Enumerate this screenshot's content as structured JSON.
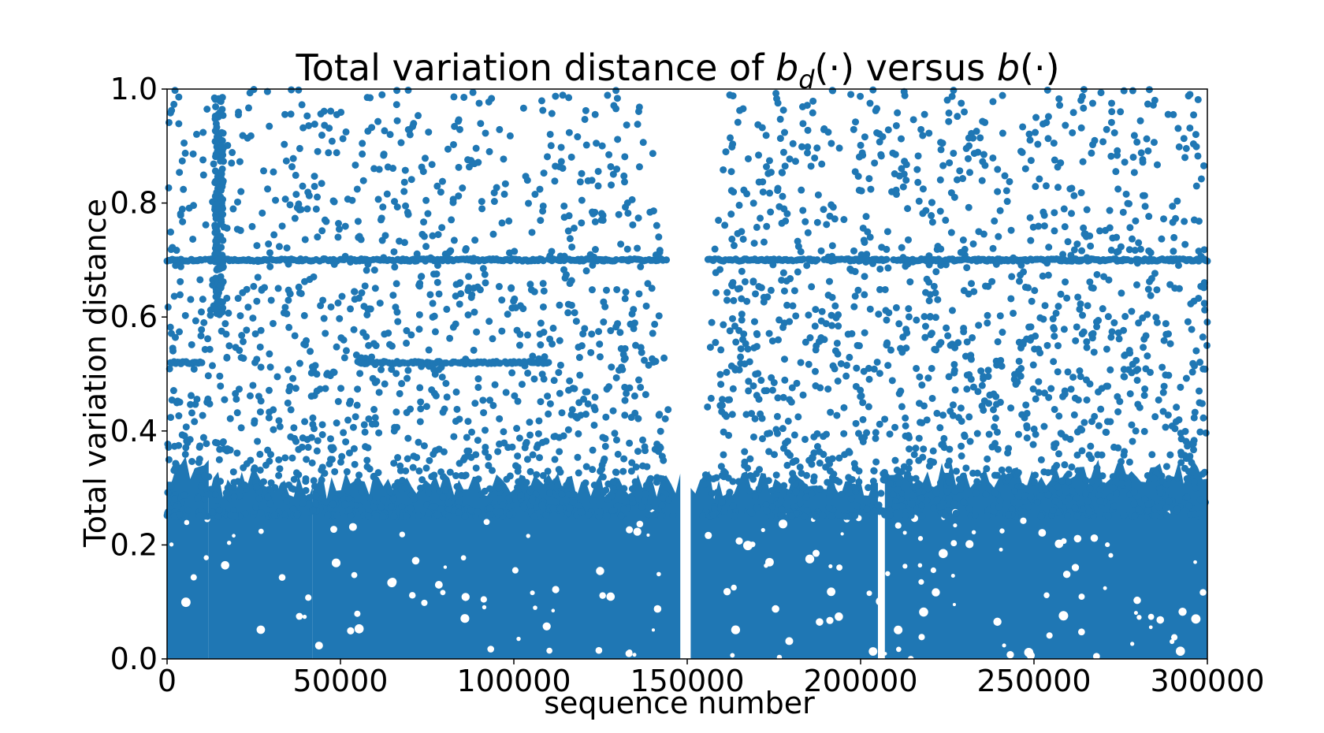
{
  "chart_data": {
    "type": "scatter",
    "title_parts": {
      "prefix": "Total variation distance of ",
      "bd_base": "b",
      "bd_sub": "d",
      "bd_args": "(·)",
      "middle": " versus ",
      "b_base": "b",
      "b_args": "(·)"
    },
    "xlabel": "sequence number",
    "ylabel": "Total variation distance",
    "xlim": [
      0,
      300000
    ],
    "ylim": [
      0.0,
      1.0
    ],
    "xticks": [
      0,
      50000,
      100000,
      150000,
      200000,
      250000,
      300000
    ],
    "xtick_labels": [
      "0",
      "50000",
      "100000",
      "150000",
      "200000",
      "250000",
      "300000"
    ],
    "yticks": [
      0.0,
      0.2,
      0.4,
      0.6,
      0.8,
      1.0
    ],
    "ytick_labels": [
      "0.0",
      "0.2",
      "0.4",
      "0.6",
      "0.8",
      "1.0"
    ],
    "grid": false,
    "legend": "none",
    "marker_color": "#1f77b4",
    "point_count": 300000,
    "dense_band": {
      "upper_bound": 0.28,
      "note_segments": [
        {
          "x": [
            0,
            12000
          ],
          "upper": 0.33
        },
        {
          "x": [
            12000,
            42000
          ],
          "upper": 0.3
        },
        {
          "x": [
            42000,
            148000
          ],
          "upper": 0.3
        },
        {
          "x": [
            151000,
            205000
          ],
          "upper": 0.3
        },
        {
          "x": [
            207000,
            300000
          ],
          "upper": 0.32
        }
      ]
    },
    "gap": {
      "x": 150000,
      "value_range": [
        0.0,
        1.0
      ]
    },
    "horizontal_lines": [
      {
        "y": 0.7,
        "x_range": [
          0,
          300000
        ]
      },
      {
        "y": 0.52,
        "x_range": [
          0,
          10000
        ]
      },
      {
        "y": 0.52,
        "x_range": [
          55000,
          110000
        ]
      }
    ],
    "vertical_cluster": {
      "x": 15000,
      "y_range": [
        0.6,
        0.99
      ]
    }
  }
}
